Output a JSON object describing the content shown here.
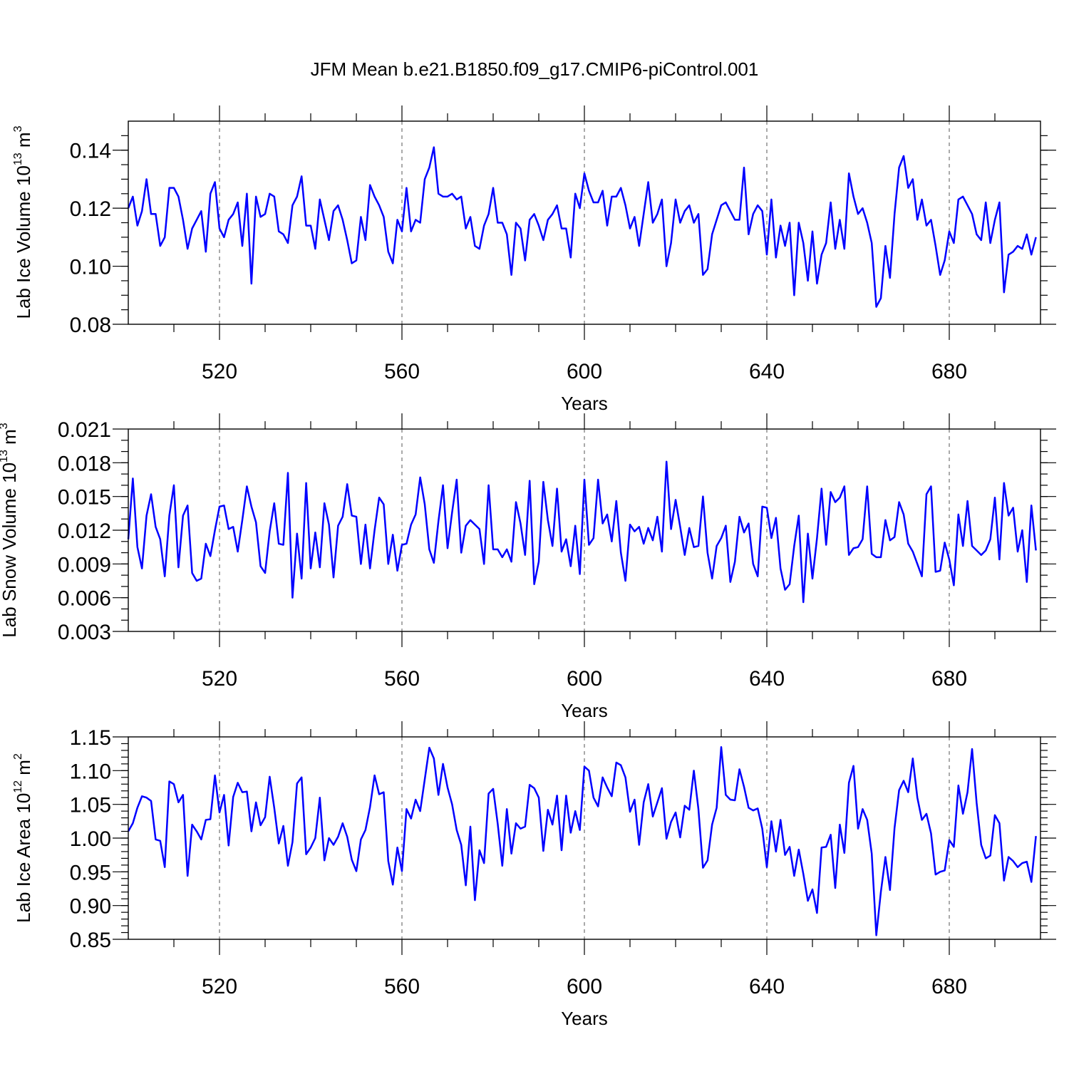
{
  "title": "JFM Mean b.e21.B1850.f09_g17.CMIP6-piControl.001",
  "colors": {
    "line": "#0000ff",
    "axis": "#000000",
    "grid": "#555555"
  },
  "chart_data": [
    {
      "type": "line",
      "ylabel": "Lab Ice Volume 10",
      "ylabel_exp": "13",
      "ylabel_unit": "m",
      "ylabel_unit_exp": "3",
      "xlabel": "Years",
      "xlim": [
        500,
        700
      ],
      "ylim": [
        0.08,
        0.15
      ],
      "yticks": [
        0.08,
        0.1,
        0.12,
        0.14
      ],
      "ytick_labels": [
        "0.08",
        "0.10",
        "0.12",
        "0.14"
      ],
      "yminor_step": 0.005,
      "xticks": [
        520,
        560,
        600,
        640,
        680
      ],
      "xtick_labels": [
        "520",
        "560",
        "600",
        "640",
        "680"
      ],
      "x_start": 500,
      "values": [
        0.12,
        0.124,
        0.114,
        0.119,
        0.13,
        0.118,
        0.118,
        0.107,
        0.11,
        0.127,
        0.127,
        0.124,
        0.116,
        0.106,
        0.113,
        0.116,
        0.119,
        0.105,
        0.125,
        0.129,
        0.113,
        0.11,
        0.116,
        0.118,
        0.122,
        0.107,
        0.125,
        0.094,
        0.124,
        0.117,
        0.118,
        0.125,
        0.124,
        0.112,
        0.111,
        0.108,
        0.121,
        0.124,
        0.131,
        0.114,
        0.114,
        0.106,
        0.123,
        0.116,
        0.109,
        0.119,
        0.121,
        0.116,
        0.109,
        0.101,
        0.102,
        0.117,
        0.109,
        0.128,
        0.124,
        0.121,
        0.117,
        0.105,
        0.101,
        0.116,
        0.112,
        0.127,
        0.112,
        0.116,
        0.115,
        0.13,
        0.134,
        0.141,
        0.125,
        0.124,
        0.124,
        0.125,
        0.123,
        0.124,
        0.113,
        0.117,
        0.107,
        0.106,
        0.114,
        0.118,
        0.127,
        0.115,
        0.115,
        0.111,
        0.097,
        0.115,
        0.113,
        0.102,
        0.116,
        0.118,
        0.114,
        0.109,
        0.116,
        0.118,
        0.121,
        0.113,
        0.113,
        0.103,
        0.125,
        0.12,
        0.132,
        0.126,
        0.122,
        0.122,
        0.126,
        0.114,
        0.124,
        0.124,
        0.127,
        0.121,
        0.113,
        0.117,
        0.107,
        0.118,
        0.129,
        0.115,
        0.118,
        0.123,
        0.1,
        0.108,
        0.123,
        0.115,
        0.119,
        0.121,
        0.115,
        0.118,
        0.097,
        0.099,
        0.111,
        0.116,
        0.121,
        0.122,
        0.119,
        0.116,
        0.116,
        0.134,
        0.111,
        0.118,
        0.121,
        0.119,
        0.104,
        0.123,
        0.103,
        0.114,
        0.107,
        0.115,
        0.09,
        0.115,
        0.108,
        0.095,
        0.112,
        0.094,
        0.104,
        0.108,
        0.122,
        0.106,
        0.116,
        0.106,
        0.132,
        0.124,
        0.118,
        0.12,
        0.115,
        0.108,
        0.086,
        0.089,
        0.107,
        0.096,
        0.118,
        0.134,
        0.138,
        0.127,
        0.13,
        0.116,
        0.123,
        0.114,
        0.116,
        0.107,
        0.097,
        0.102,
        0.112,
        0.108,
        0.123,
        0.124,
        0.121,
        0.118,
        0.111,
        0.109,
        0.122,
        0.108,
        0.116,
        0.122,
        0.091,
        0.104,
        0.105,
        0.107,
        0.106,
        0.111,
        0.104,
        0.11
      ]
    },
    {
      "type": "line",
      "ylabel": "Lab Snow Volume 10",
      "ylabel_exp": "13",
      "ylabel_unit": "m",
      "ylabel_unit_exp": "3",
      "xlabel": "Years",
      "xlim": [
        500,
        700
      ],
      "ylim": [
        0.003,
        0.021
      ],
      "yticks": [
        0.003,
        0.006,
        0.009,
        0.012,
        0.015,
        0.018,
        0.021
      ],
      "ytick_labels": [
        "0.003",
        "0.006",
        "0.009",
        "0.012",
        "0.015",
        "0.018",
        "0.021"
      ],
      "yminor_step": 0.001,
      "xticks": [
        520,
        560,
        600,
        640,
        680
      ],
      "xtick_labels": [
        "520",
        "560",
        "600",
        "640",
        "680"
      ],
      "x_start": 500,
      "values": [
        0.0112,
        0.0166,
        0.0105,
        0.0086,
        0.0133,
        0.0152,
        0.0123,
        0.0112,
        0.0079,
        0.0133,
        0.016,
        0.0087,
        0.0133,
        0.0142,
        0.0082,
        0.0075,
        0.0077,
        0.0108,
        0.0097,
        0.012,
        0.0141,
        0.0142,
        0.0121,
        0.0123,
        0.0101,
        0.0129,
        0.0159,
        0.0141,
        0.0127,
        0.0088,
        0.0082,
        0.0119,
        0.0144,
        0.0108,
        0.0107,
        0.0171,
        0.006,
        0.0117,
        0.0077,
        0.0162,
        0.0086,
        0.0118,
        0.0087,
        0.0144,
        0.0125,
        0.0078,
        0.0124,
        0.0132,
        0.0161,
        0.0133,
        0.0132,
        0.009,
        0.0125,
        0.0086,
        0.012,
        0.0149,
        0.0143,
        0.009,
        0.0116,
        0.0084,
        0.0107,
        0.0108,
        0.0125,
        0.0134,
        0.0167,
        0.0143,
        0.0103,
        0.0091,
        0.0128,
        0.016,
        0.0104,
        0.0136,
        0.0165,
        0.01,
        0.0124,
        0.0129,
        0.0125,
        0.0121,
        0.009,
        0.016,
        0.0103,
        0.0103,
        0.0096,
        0.0103,
        0.0092,
        0.0145,
        0.0126,
        0.0098,
        0.0164,
        0.0072,
        0.0092,
        0.0163,
        0.0129,
        0.0106,
        0.0157,
        0.0101,
        0.0112,
        0.0088,
        0.0124,
        0.0081,
        0.0165,
        0.0107,
        0.0113,
        0.0165,
        0.0126,
        0.0134,
        0.011,
        0.0146,
        0.01,
        0.0075,
        0.0125,
        0.0119,
        0.0123,
        0.0108,
        0.0122,
        0.0111,
        0.0132,
        0.0101,
        0.0181,
        0.0121,
        0.0147,
        0.0123,
        0.0098,
        0.0122,
        0.0105,
        0.0106,
        0.015,
        0.01,
        0.0077,
        0.0106,
        0.0113,
        0.0124,
        0.0074,
        0.0092,
        0.0132,
        0.0118,
        0.0126,
        0.009,
        0.0079,
        0.0141,
        0.014,
        0.0113,
        0.0131,
        0.0086,
        0.0067,
        0.0072,
        0.0106,
        0.0133,
        0.0056,
        0.0117,
        0.0077,
        0.0113,
        0.0157,
        0.0107,
        0.0154,
        0.0145,
        0.0149,
        0.0159,
        0.0098,
        0.0104,
        0.0105,
        0.0112,
        0.0159,
        0.0099,
        0.0096,
        0.0096,
        0.0129,
        0.0111,
        0.0114,
        0.0145,
        0.0134,
        0.0108,
        0.0101,
        0.009,
        0.0079,
        0.0152,
        0.0159,
        0.0083,
        0.0084,
        0.0109,
        0.0094,
        0.0071,
        0.0134,
        0.0106,
        0.0146,
        0.0106,
        0.0102,
        0.0098,
        0.0102,
        0.0112,
        0.0149,
        0.0094,
        0.0162,
        0.0133,
        0.014,
        0.0101,
        0.012,
        0.0074,
        0.0142,
        0.0102
      ]
    },
    {
      "type": "line",
      "ylabel": "Lab Ice Area 10",
      "ylabel_exp": "12",
      "ylabel_unit": "m",
      "ylabel_unit_exp": "2",
      "xlabel": "Years",
      "xlim": [
        500,
        700
      ],
      "ylim": [
        0.85,
        1.15
      ],
      "yticks": [
        0.85,
        0.9,
        0.95,
        1.0,
        1.05,
        1.1,
        1.15
      ],
      "ytick_labels": [
        "0.85",
        "0.90",
        "0.95",
        "1.00",
        "1.05",
        "1.10",
        "1.15"
      ],
      "yminor_step": 0.01,
      "xticks": [
        520,
        560,
        600,
        640,
        680
      ],
      "xtick_labels": [
        "520",
        "560",
        "600",
        "640",
        "680"
      ],
      "x_start": 500,
      "values": [
        1.01,
        1.022,
        1.045,
        1.062,
        1.06,
        1.055,
        0.998,
        0.996,
        0.957,
        1.084,
        1.08,
        1.053,
        1.064,
        0.944,
        1.02,
        1.01,
        0.998,
        1.027,
        1.028,
        1.093,
        1.038,
        1.064,
        0.989,
        1.061,
        1.082,
        1.068,
        1.069,
        1.01,
        1.053,
        1.019,
        1.031,
        1.091,
        1.045,
        0.992,
        1.018,
        0.959,
        0.994,
        1.081,
        1.09,
        0.976,
        0.986,
        1.0,
        1.06,
        0.967,
        1.0,
        0.99,
        1.002,
        1.022,
        1.002,
        0.968,
        0.951,
        0.998,
        1.012,
        1.046,
        1.093,
        1.065,
        1.068,
        0.966,
        0.931,
        0.986,
        0.951,
        1.043,
        1.029,
        1.057,
        1.04,
        1.087,
        1.134,
        1.118,
        1.064,
        1.11,
        1.075,
        1.05,
        1.012,
        0.99,
        0.93,
        1.017,
        0.908,
        0.982,
        0.963,
        1.066,
        1.073,
        1.021,
        0.959,
        1.043,
        0.977,
        1.022,
        1.014,
        1.017,
        1.079,
        1.074,
        1.06,
        0.981,
        1.042,
        1.02,
        1.063,
        0.982,
        1.063,
        1.008,
        1.04,
        1.012,
        1.106,
        1.1,
        1.06,
        1.047,
        1.09,
        1.075,
        1.062,
        1.112,
        1.108,
        1.09,
        1.039,
        1.057,
        0.99,
        1.053,
        1.08,
        1.032,
        1.053,
        1.074,
        0.999,
        1.024,
        1.038,
        1.001,
        1.048,
        1.042,
        1.1,
        1.043,
        0.956,
        0.967,
        1.02,
        1.045,
        1.135,
        1.064,
        1.057,
        1.056,
        1.102,
        1.076,
        1.045,
        1.041,
        1.044,
        1.014,
        0.957,
        1.025,
        0.98,
        1.027,
        0.975,
        0.987,
        0.944,
        0.983,
        0.947,
        0.907,
        0.924,
        0.889,
        0.986,
        0.987,
        1.005,
        0.926,
        1.02,
        0.978,
        1.082,
        1.107,
        1.014,
        1.043,
        1.027,
        0.977,
        0.856,
        0.92,
        0.972,
        0.923,
        1.015,
        1.071,
        1.085,
        1.068,
        1.118,
        1.06,
        1.027,
        1.036,
        1.007,
        0.946,
        0.95,
        0.952,
        0.997,
        0.987,
        1.078,
        1.036,
        1.068,
        1.132,
        1.052,
        0.99,
        0.97,
        0.974,
        1.034,
        1.022,
        0.937,
        0.972,
        0.966,
        0.957,
        0.963,
        0.965,
        0.935,
        1.003
      ]
    }
  ]
}
